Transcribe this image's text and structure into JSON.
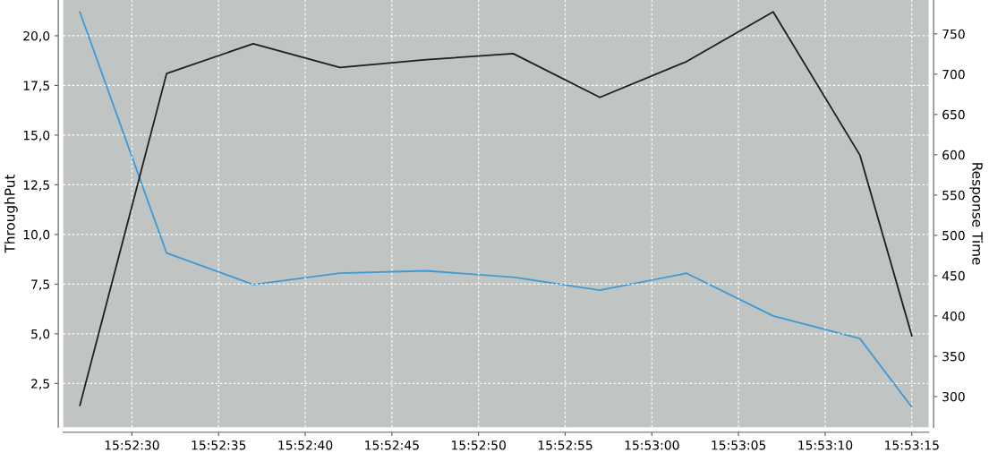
{
  "chart_data": {
    "type": "line",
    "ylabel": "ThroughPut",
    "y2label": "Response Time",
    "x": [
      15.8741667,
      15.8755556,
      15.8769444,
      15.8783333,
      15.8797222,
      15.8811111,
      15.8825,
      15.8838889,
      15.8852778,
      15.8866667,
      15.8875
    ],
    "series": [
      {
        "color": "#1e1e1e",
        "values": [
          1.4,
          18.1,
          19.6,
          18.4,
          18.8,
          19.1,
          16.9,
          18.7,
          21.2,
          14.0,
          4.9
        ]
      },
      {
        "color": "#3d9ad6",
        "axis": "y2",
        "values": [
          777,
          478,
          439,
          453,
          456,
          448,
          432,
          453,
          400,
          372,
          287
        ]
      }
    ],
    "xlim": [
      15.8739,
      15.88777
    ],
    "xticks": [
      {
        "value": 15.875,
        "label": "15:52:30"
      },
      {
        "value": 15.8763889,
        "label": "15:52:35"
      },
      {
        "value": 15.8777778,
        "label": "15:52:40"
      },
      {
        "value": 15.8791667,
        "label": "15:52:45"
      },
      {
        "value": 15.8805556,
        "label": "15:52:50"
      },
      {
        "value": 15.8819444,
        "label": "15:52:55"
      },
      {
        "value": 15.8833333,
        "label": "15:53:00"
      },
      {
        "value": 15.8847222,
        "label": "15:53:05"
      },
      {
        "value": 15.8861111,
        "label": "15:53:10"
      },
      {
        "value": 15.8875,
        "label": "15:53:15"
      }
    ],
    "ylim": [
      0.3,
      21.8
    ],
    "yticks": [
      {
        "value": 2.5,
        "label": "2,5"
      },
      {
        "value": 5,
        "label": "5,0"
      },
      {
        "value": 7.5,
        "label": "7,5"
      },
      {
        "value": 10,
        "label": "10,0"
      },
      {
        "value": 12.5,
        "label": "12,5"
      },
      {
        "value": 15,
        "label": "15,0"
      },
      {
        "value": 17.5,
        "label": "17,5"
      },
      {
        "value": 20,
        "label": "20,0"
      }
    ],
    "y2lim": [
      262,
      792
    ],
    "y2ticks": [
      300,
      350,
      400,
      450,
      500,
      550,
      600,
      650,
      700,
      750
    ],
    "grid": true,
    "line_style": "solid"
  }
}
